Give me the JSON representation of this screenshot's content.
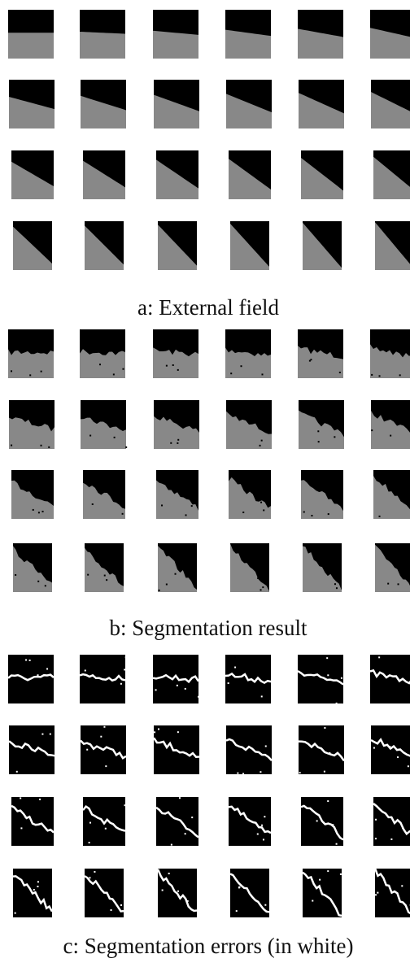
{
  "panels": [
    {
      "caption": "a: External field"
    },
    {
      "caption": "b: Segmentation result"
    },
    {
      "caption": "c: Segmentation errors (in white)"
    }
  ]
}
